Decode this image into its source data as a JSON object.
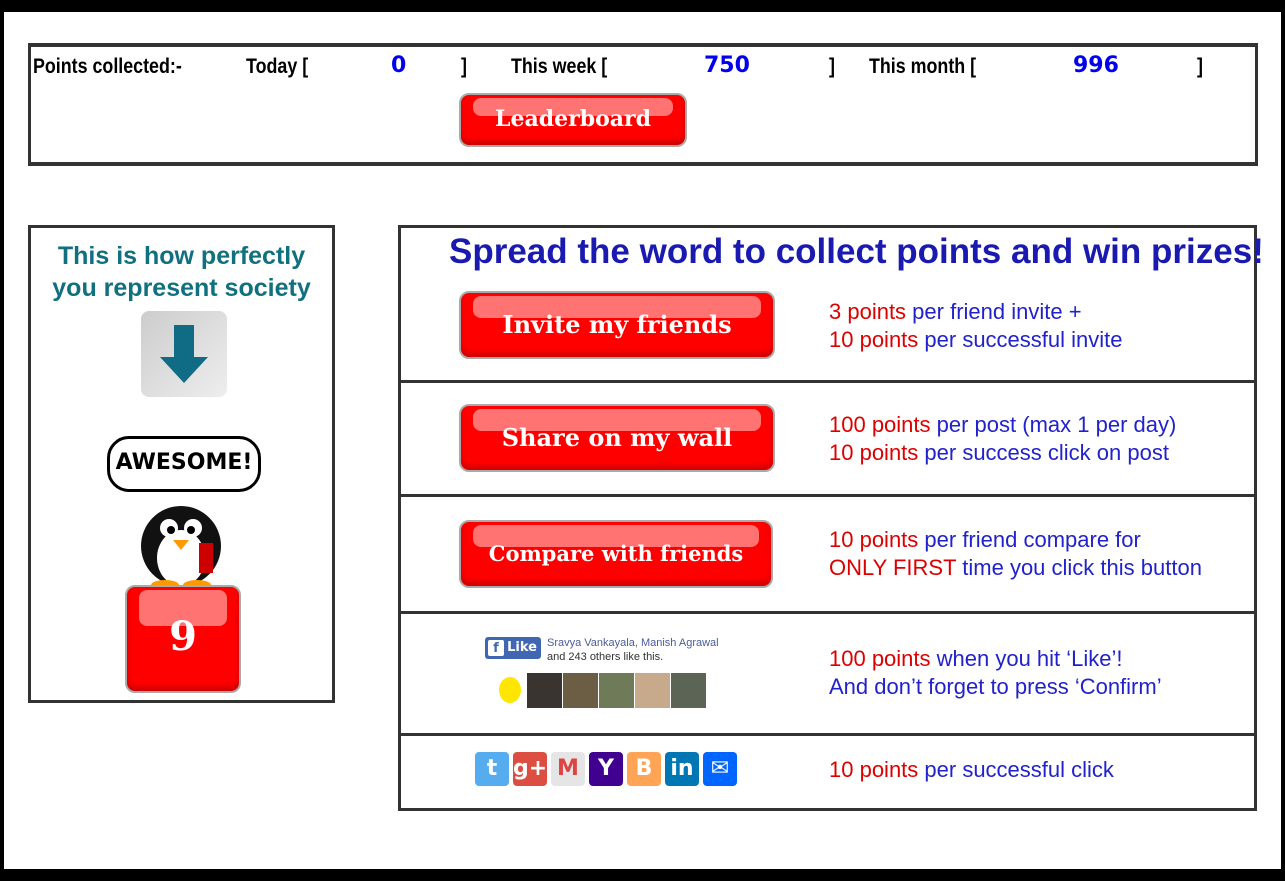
{
  "points": {
    "label": "Points collected:-",
    "today_label": "Today [",
    "today": "0",
    "week_label": "This week [",
    "week": "750",
    "month_label": "This month [",
    "month": "996",
    "close": "]",
    "leaderboard": "Leaderboard"
  },
  "left": {
    "title": "This is how perfectly you represent society",
    "speech": "AWESOME!",
    "score": "9"
  },
  "right": {
    "heading": "Spread the word to collect points and win prizes!",
    "rows": [
      {
        "button": "Invite my friends",
        "l1a": "3 points",
        "l1b": " per friend invite +",
        "l2a": "10 points",
        "l2b": " per successful invite"
      },
      {
        "button": "Share on my wall",
        "l1a": "100 points",
        "l1b": " per post (max 1 per day)",
        "l2a": "10 points",
        "l2b": " per success click on post"
      },
      {
        "button": "Compare with friends",
        "l1a": "10 points",
        "l1b": " per friend compare for",
        "l2a": "ONLY FIRST",
        "l2b": " time you click this button"
      },
      {
        "l1a": "100 points",
        "l1b": " when you hit ‘Like’!",
        "l2a": "",
        "l2b": "And don’t forget to press ‘Confirm’"
      },
      {
        "l1a": "10 points",
        "l1b": " per successful click"
      }
    ],
    "fb": {
      "like": "Like",
      "names": "Sravya Vankayala, Manish Agrawal",
      "others": "and 243 others like this."
    },
    "share_icons": [
      {
        "name": "twitter",
        "color": "#55acee",
        "glyph": "t"
      },
      {
        "name": "google-plus",
        "color": "#dc4e41",
        "glyph": "g+"
      },
      {
        "name": "gmail",
        "color": "#e5e5e5",
        "glyph": "M"
      },
      {
        "name": "yahoo",
        "color": "#400090",
        "glyph": "Y"
      },
      {
        "name": "blogger",
        "color": "#ffa454",
        "glyph": "B"
      },
      {
        "name": "linkedin",
        "color": "#0077b5",
        "glyph": "in"
      },
      {
        "name": "email",
        "color": "#0166ff",
        "glyph": "✉"
      }
    ]
  }
}
